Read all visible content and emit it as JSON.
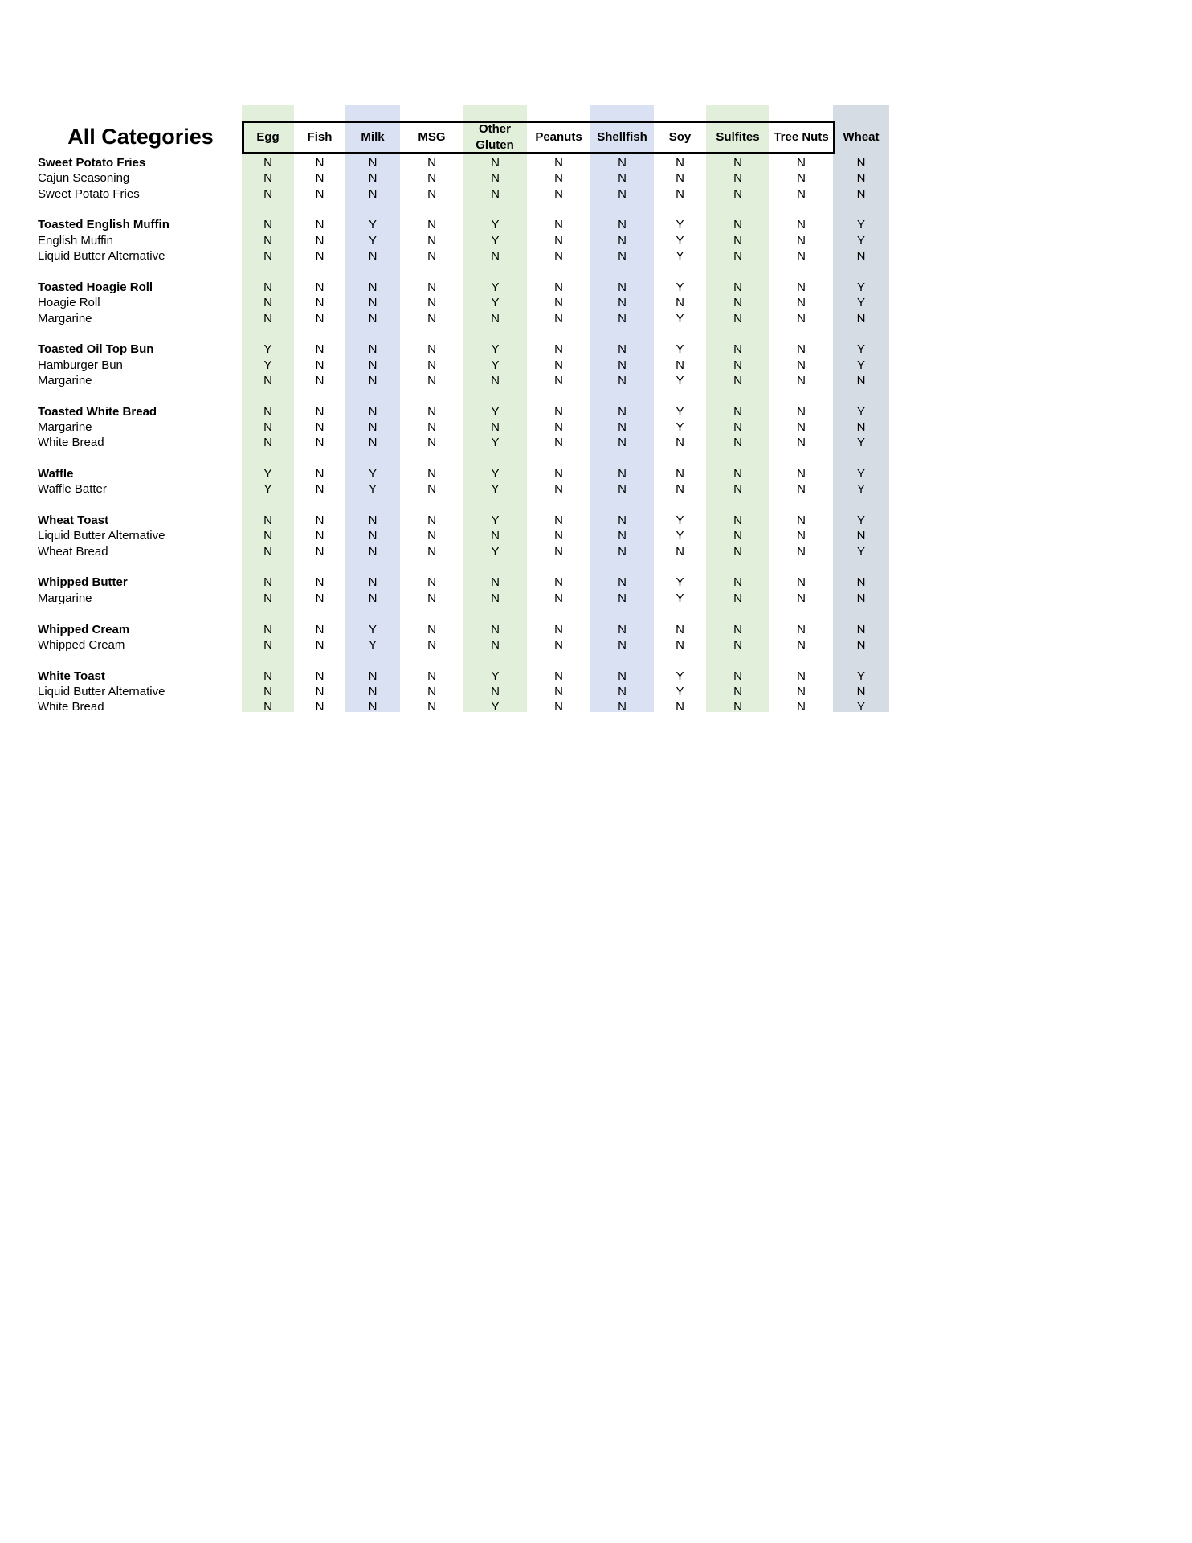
{
  "title": "All Categories",
  "columns": [
    "Egg",
    "Fish",
    "Milk",
    "MSG",
    "Other Gluten",
    "Peanuts",
    "Shellfish",
    "Soy",
    "Sulfites",
    "Tree Nuts",
    "Wheat"
  ],
  "column_colors": [
    "#e2efda",
    "#ffffff",
    "#d9e1f2",
    "#ffffff",
    "#e2efda",
    "#ffffff",
    "#d9e1f2",
    "#ffffff",
    "#e2efda",
    "#ffffff",
    "#d6dce4"
  ],
  "groups": [
    {
      "items": [
        {
          "name": "Sweet Potato Fries",
          "main": true,
          "values": [
            "N",
            "N",
            "N",
            "N",
            "N",
            "N",
            "N",
            "N",
            "N",
            "N",
            "N"
          ]
        },
        {
          "name": "Cajun Seasoning",
          "values": [
            "N",
            "N",
            "N",
            "N",
            "N",
            "N",
            "N",
            "N",
            "N",
            "N",
            "N"
          ]
        },
        {
          "name": "Sweet Potato Fries",
          "values": [
            "N",
            "N",
            "N",
            "N",
            "N",
            "N",
            "N",
            "N",
            "N",
            "N",
            "N"
          ]
        }
      ]
    },
    {
      "items": [
        {
          "name": "Toasted English Muffin",
          "main": true,
          "values": [
            "N",
            "N",
            "Y",
            "N",
            "Y",
            "N",
            "N",
            "Y",
            "N",
            "N",
            "Y"
          ]
        },
        {
          "name": "English Muffin",
          "values": [
            "N",
            "N",
            "Y",
            "N",
            "Y",
            "N",
            "N",
            "Y",
            "N",
            "N",
            "Y"
          ]
        },
        {
          "name": "Liquid Butter Alternative",
          "values": [
            "N",
            "N",
            "N",
            "N",
            "N",
            "N",
            "N",
            "Y",
            "N",
            "N",
            "N"
          ]
        }
      ]
    },
    {
      "items": [
        {
          "name": "Toasted Hoagie Roll",
          "main": true,
          "values": [
            "N",
            "N",
            "N",
            "N",
            "Y",
            "N",
            "N",
            "Y",
            "N",
            "N",
            "Y"
          ]
        },
        {
          "name": "Hoagie Roll",
          "values": [
            "N",
            "N",
            "N",
            "N",
            "Y",
            "N",
            "N",
            "N",
            "N",
            "N",
            "Y"
          ]
        },
        {
          "name": "Margarine",
          "values": [
            "N",
            "N",
            "N",
            "N",
            "N",
            "N",
            "N",
            "Y",
            "N",
            "N",
            "N"
          ]
        }
      ]
    },
    {
      "items": [
        {
          "name": "Toasted Oil Top Bun",
          "main": true,
          "values": [
            "Y",
            "N",
            "N",
            "N",
            "Y",
            "N",
            "N",
            "Y",
            "N",
            "N",
            "Y"
          ]
        },
        {
          "name": "Hamburger Bun",
          "values": [
            "Y",
            "N",
            "N",
            "N",
            "Y",
            "N",
            "N",
            "N",
            "N",
            "N",
            "Y"
          ]
        },
        {
          "name": "Margarine",
          "values": [
            "N",
            "N",
            "N",
            "N",
            "N",
            "N",
            "N",
            "Y",
            "N",
            "N",
            "N"
          ]
        }
      ]
    },
    {
      "items": [
        {
          "name": "Toasted White Bread",
          "main": true,
          "values": [
            "N",
            "N",
            "N",
            "N",
            "Y",
            "N",
            "N",
            "Y",
            "N",
            "N",
            "Y"
          ]
        },
        {
          "name": "Margarine",
          "values": [
            "N",
            "N",
            "N",
            "N",
            "N",
            "N",
            "N",
            "Y",
            "N",
            "N",
            "N"
          ]
        },
        {
          "name": "White Bread",
          "values": [
            "N",
            "N",
            "N",
            "N",
            "Y",
            "N",
            "N",
            "N",
            "N",
            "N",
            "Y"
          ]
        }
      ]
    },
    {
      "items": [
        {
          "name": "Waffle",
          "main": true,
          "values": [
            "Y",
            "N",
            "Y",
            "N",
            "Y",
            "N",
            "N",
            "N",
            "N",
            "N",
            "Y"
          ]
        },
        {
          "name": "Waffle Batter",
          "values": [
            "Y",
            "N",
            "Y",
            "N",
            "Y",
            "N",
            "N",
            "N",
            "N",
            "N",
            "Y"
          ]
        }
      ]
    },
    {
      "items": [
        {
          "name": "Wheat Toast",
          "main": true,
          "values": [
            "N",
            "N",
            "N",
            "N",
            "Y",
            "N",
            "N",
            "Y",
            "N",
            "N",
            "Y"
          ]
        },
        {
          "name": "Liquid Butter Alternative",
          "values": [
            "N",
            "N",
            "N",
            "N",
            "N",
            "N",
            "N",
            "Y",
            "N",
            "N",
            "N"
          ]
        },
        {
          "name": "Wheat Bread",
          "values": [
            "N",
            "N",
            "N",
            "N",
            "Y",
            "N",
            "N",
            "N",
            "N",
            "N",
            "Y"
          ]
        }
      ]
    },
    {
      "items": [
        {
          "name": "Whipped Butter",
          "main": true,
          "values": [
            "N",
            "N",
            "N",
            "N",
            "N",
            "N",
            "N",
            "Y",
            "N",
            "N",
            "N"
          ]
        },
        {
          "name": "Margarine",
          "values": [
            "N",
            "N",
            "N",
            "N",
            "N",
            "N",
            "N",
            "Y",
            "N",
            "N",
            "N"
          ]
        }
      ]
    },
    {
      "items": [
        {
          "name": "Whipped Cream",
          "main": true,
          "values": [
            "N",
            "N",
            "Y",
            "N",
            "N",
            "N",
            "N",
            "N",
            "N",
            "N",
            "N"
          ]
        },
        {
          "name": "Whipped Cream",
          "values": [
            "N",
            "N",
            "Y",
            "N",
            "N",
            "N",
            "N",
            "N",
            "N",
            "N",
            "N"
          ]
        }
      ]
    },
    {
      "items": [
        {
          "name": "White Toast",
          "main": true,
          "values": [
            "N",
            "N",
            "N",
            "N",
            "Y",
            "N",
            "N",
            "Y",
            "N",
            "N",
            "Y"
          ]
        },
        {
          "name": "Liquid Butter Alternative",
          "values": [
            "N",
            "N",
            "N",
            "N",
            "N",
            "N",
            "N",
            "Y",
            "N",
            "N",
            "N"
          ]
        },
        {
          "name": "White Bread",
          "values": [
            "N",
            "N",
            "N",
            "N",
            "Y",
            "N",
            "N",
            "N",
            "N",
            "N",
            "Y"
          ]
        }
      ]
    }
  ]
}
